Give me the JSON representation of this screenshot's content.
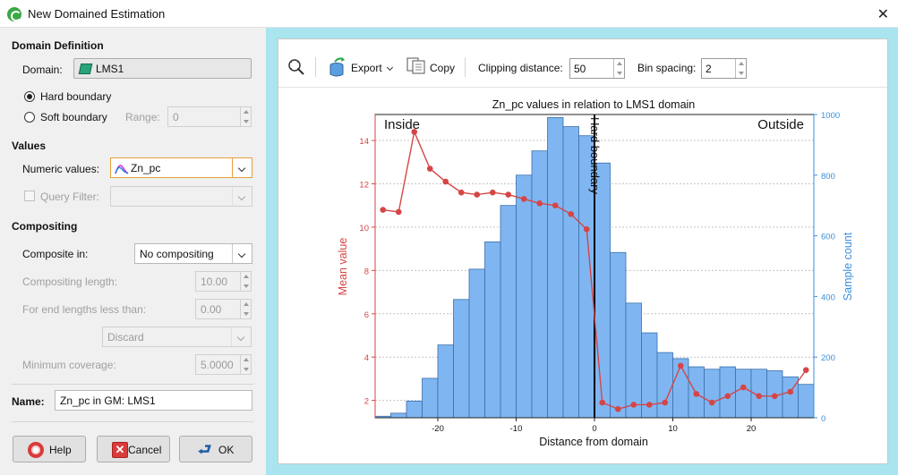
{
  "window": {
    "title": "New Domained Estimation"
  },
  "domain_definition": {
    "heading": "Domain Definition",
    "domain_label": "Domain:",
    "domain_value": "LMS1",
    "hard_boundary": "Hard boundary",
    "soft_boundary": "Soft boundary",
    "range_label": "Range:",
    "range_value": "0",
    "boundary_selected": "Hard boundary"
  },
  "values": {
    "heading": "Values",
    "numeric_label": "Numeric values:",
    "numeric_value": "Zn_pc",
    "query_filter_label": "Query Filter:",
    "query_filter_value": ""
  },
  "compositing": {
    "heading": "Compositing",
    "composite_in_label": "Composite in:",
    "composite_in_value": "No compositing",
    "length_label": "Compositing length:",
    "length_value": "10.00",
    "end_label": "For end lengths less than:",
    "end_value": "0.00",
    "discard_value": "Discard",
    "min_cov_label": "Minimum coverage:",
    "min_cov_value": "5.0000"
  },
  "name": {
    "label": "Name:",
    "value": "Zn_pc in GM: LMS1"
  },
  "buttons": {
    "help": "Help",
    "cancel": "Cancel",
    "ok": "OK"
  },
  "toolbar": {
    "export": "Export",
    "copy": "Copy",
    "clipping_label": "Clipping distance:",
    "clipping_value": "50",
    "bin_label": "Bin spacing:",
    "bin_value": "2"
  },
  "colors": {
    "mean_line": "#d64545",
    "bars": "#7fb6f2",
    "bar_edge": "#3a6fa8",
    "right_axis": "#3a8fdc",
    "panel_bg": "#a8e5ee"
  },
  "chart_data": {
    "type": "bar",
    "title": "Zn_pc values in relation to LMS1 domain",
    "xlabel": "Distance from domain",
    "ylabel": "Mean value",
    "y2label": "Sample count",
    "xlim": [
      -28,
      28
    ],
    "ylim": [
      1.2,
      15.2
    ],
    "y2lim": [
      0,
      1000
    ],
    "xticks": [
      -20,
      -10,
      0,
      10,
      20
    ],
    "yticks": [
      2,
      4,
      6,
      8,
      10,
      12,
      14
    ],
    "y2ticks": [
      0,
      200,
      400,
      600,
      800,
      1000
    ],
    "grid": "horizontal dotted",
    "annotations": {
      "inside": "Inside",
      "outside": "Outside",
      "boundary": "Hard boundary"
    },
    "histogram": {
      "name": "Sample count",
      "bin_edges": [
        -28,
        -26,
        -24,
        -22,
        -20,
        -18,
        -16,
        -14,
        -12,
        -10,
        -8,
        -6,
        -4,
        -2,
        0,
        2,
        4,
        6,
        8,
        10,
        12,
        14,
        16,
        18,
        20,
        22,
        24,
        26,
        28
      ],
      "counts": [
        5,
        15,
        55,
        130,
        240,
        390,
        490,
        580,
        700,
        800,
        880,
        990,
        960,
        930,
        840,
        545,
        378,
        280,
        215,
        195,
        168,
        160,
        168,
        160,
        160,
        155,
        135,
        110
      ]
    },
    "series": [
      {
        "name": "Mean value",
        "x": [
          -27,
          -25,
          -23,
          -21,
          -19,
          -17,
          -15,
          -13,
          -11,
          -9,
          -7,
          -5,
          -3,
          -1,
          1,
          3,
          5,
          7,
          9,
          11,
          13,
          15,
          17,
          19,
          21,
          23,
          25,
          27
        ],
        "values": [
          10.8,
          10.7,
          14.4,
          12.7,
          12.1,
          11.6,
          11.5,
          11.6,
          11.5,
          11.3,
          11.1,
          11.0,
          10.6,
          9.9,
          1.9,
          1.6,
          1.8,
          1.8,
          1.9,
          3.6,
          2.3,
          1.9,
          2.2,
          2.6,
          2.2,
          2.2,
          2.4,
          3.4
        ]
      }
    ]
  }
}
